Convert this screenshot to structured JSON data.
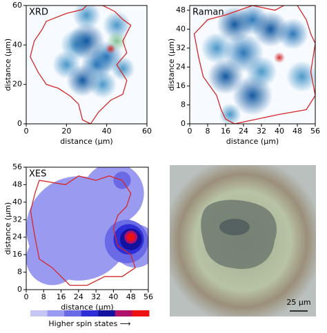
{
  "chart_data": [
    {
      "type": "heatmap",
      "title": "XRD",
      "xlabel": "distance (μm)",
      "ylabel": "distance (μm)",
      "xlim": [
        0,
        60
      ],
      "ylim": [
        0,
        60
      ],
      "xticks": [
        0,
        20,
        40,
        60
      ],
      "yticks": [
        0,
        20,
        40,
        60
      ],
      "colors": [
        "#deebf7",
        "#9ecae1",
        "#4292c6",
        "#2171b5",
        "#08519c",
        "#7fbf8f",
        "#d62728"
      ],
      "x": [
        30,
        28,
        40,
        45,
        35,
        25,
        20,
        38,
        48,
        30,
        45,
        42
      ],
      "y": [
        42,
        22,
        34,
        50,
        30,
        40,
        30,
        20,
        28,
        55,
        42,
        38
      ],
      "values": [
        0.6,
        0.7,
        0.5,
        0.4,
        0.5,
        0.3,
        0.3,
        0.4,
        0.3,
        0.3,
        0.85,
        1.0
      ],
      "sizes": [
        9,
        8,
        8,
        7,
        8,
        8,
        7,
        7,
        6,
        7,
        5,
        2.5
      ],
      "outline": {
        "color": "#d62728",
        "x": [
          10,
          20,
          28,
          30,
          38,
          44,
          48,
          52,
          48,
          50,
          45,
          50,
          48,
          42,
          36,
          32,
          28,
          26,
          22,
          16,
          10,
          6,
          2,
          4,
          8
        ],
        "y": [
          52,
          56,
          58,
          60,
          60,
          57,
          53,
          50,
          42,
          36,
          30,
          22,
          15,
          12,
          6,
          0,
          2,
          10,
          14,
          18,
          20,
          26,
          34,
          42,
          48
        ]
      }
    },
    {
      "type": "heatmap",
      "title": "Raman",
      "xlabel": "distance (μm)",
      "ylabel": "distance (μm)",
      "xlim": [
        0,
        56
      ],
      "ylim": [
        0,
        50
      ],
      "xticks": [
        0,
        8,
        16,
        24,
        32,
        40,
        48,
        56
      ],
      "yticks": [
        0,
        8,
        16,
        24,
        32,
        40,
        48
      ],
      "colors": [
        "#deebf7",
        "#9ecae1",
        "#4292c6",
        "#2171b5",
        "#08519c",
        "#e6550d",
        "#d62728"
      ],
      "x": [
        20,
        36,
        28,
        16,
        24,
        46,
        50,
        12,
        32,
        28,
        18,
        40
      ],
      "y": [
        42,
        40,
        12,
        20,
        30,
        38,
        20,
        32,
        22,
        44,
        4,
        28
      ],
      "values": [
        0.7,
        0.6,
        0.7,
        0.6,
        0.5,
        0.5,
        0.4,
        0.4,
        0.4,
        0.5,
        0.4,
        1.0
      ],
      "sizes": [
        8,
        8,
        9,
        8,
        9,
        7,
        7,
        7,
        7,
        7,
        5,
        2.5
      ],
      "outline": {
        "color": "#d62728",
        "x": [
          16,
          28,
          38,
          44,
          48,
          52,
          54,
          56,
          54,
          56,
          52,
          40,
          30,
          20,
          16,
          14,
          12,
          6,
          4,
          2,
          8
        ],
        "y": [
          46,
          50,
          48,
          51,
          50,
          44,
          38,
          34,
          22,
          12,
          6,
          4,
          2,
          0,
          2,
          6,
          12,
          20,
          28,
          38,
          44
        ]
      }
    },
    {
      "type": "contour",
      "title": "XES",
      "xlabel": "distance (μm)",
      "ylabel": "distance (μm)",
      "xlim": [
        0,
        56
      ],
      "ylim": [
        0,
        56
      ],
      "xticks": [
        0,
        8,
        16,
        24,
        32,
        40,
        48,
        56
      ],
      "yticks": [
        0,
        8,
        16,
        24,
        32,
        40,
        48,
        56
      ],
      "colors": [
        "#c6c6f5",
        "#9a9af0",
        "#6a6ae6",
        "#2e2ed6",
        "#12129e",
        "#b0106a",
        "#ee1111"
      ],
      "colorbar_label": "Higher spin states ⟶",
      "x": [
        24,
        40,
        12,
        50,
        46,
        47,
        48,
        48,
        48,
        44
      ],
      "y": [
        28,
        44,
        14,
        20,
        22,
        23,
        23,
        24,
        24,
        50
      ],
      "values": [
        0.1,
        0.1,
        0.1,
        0.1,
        0.3,
        0.5,
        0.7,
        0.85,
        1.0,
        0.3
      ],
      "sizes": [
        24,
        14,
        12,
        10,
        10,
        7,
        5,
        3,
        1.8,
        4
      ],
      "outline": {
        "color": "#d62728",
        "x": [
          6,
          18,
          24,
          32,
          38,
          44,
          48,
          46,
          42,
          40,
          42,
          48,
          50,
          44,
          36,
          28,
          20,
          16,
          12,
          6,
          4,
          2,
          4
        ],
        "y": [
          50,
          48,
          52,
          50,
          52,
          50,
          44,
          38,
          34,
          28,
          20,
          16,
          10,
          6,
          6,
          2,
          2,
          6,
          10,
          14,
          24,
          36,
          44
        ]
      }
    }
  ],
  "image": {
    "scale_label": "25 μm"
  }
}
